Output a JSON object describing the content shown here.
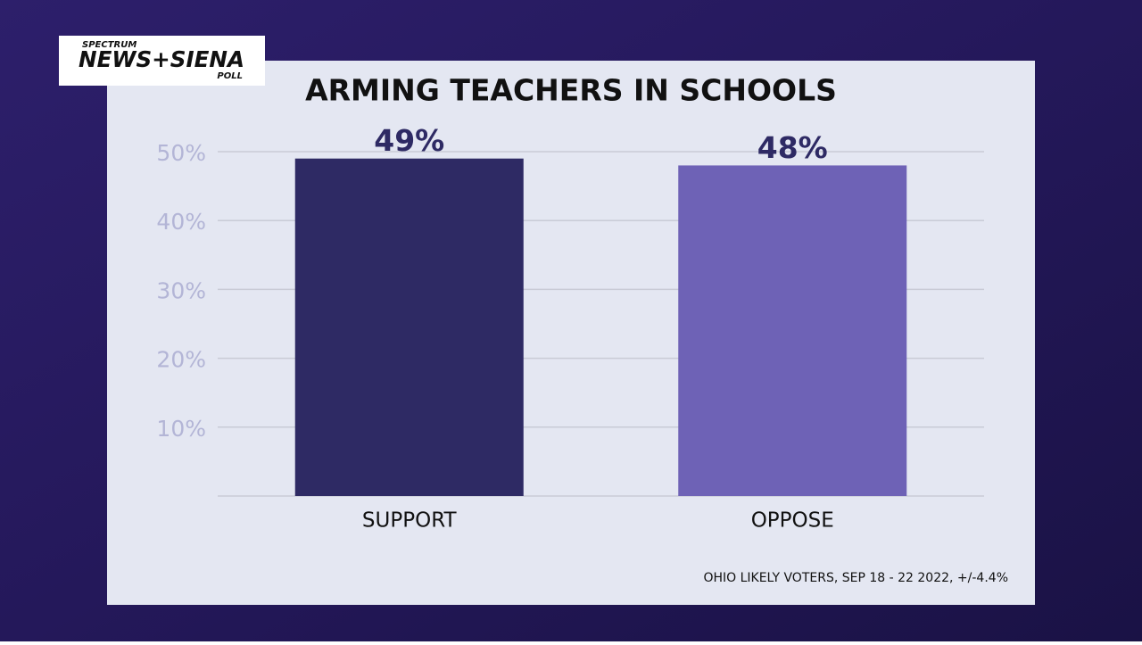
{
  "logo": {
    "top": "SPECTRUM",
    "main": "NEWS+SIENA",
    "bottom": "POLL"
  },
  "chart_data": {
    "type": "bar",
    "title": "ARMING TEACHERS IN SCHOOLS",
    "categories": [
      "SUPPORT",
      "OPPOSE"
    ],
    "values": [
      49,
      48
    ],
    "value_labels": [
      "49%",
      "48%"
    ],
    "colors": [
      "#2e2a64",
      "#6e62b6"
    ],
    "ylim": [
      0,
      50
    ],
    "yticks": [
      {
        "value": 10,
        "label": "10%"
      },
      {
        "value": 20,
        "label": "20%"
      },
      {
        "value": 30,
        "label": "30%"
      },
      {
        "value": 40,
        "label": "40%"
      },
      {
        "value": 50,
        "label": "50%"
      }
    ],
    "grid": true,
    "note": "OHIO LIKELY VOTERS, SEP 18 - 22 2022, +/-4.4%"
  }
}
